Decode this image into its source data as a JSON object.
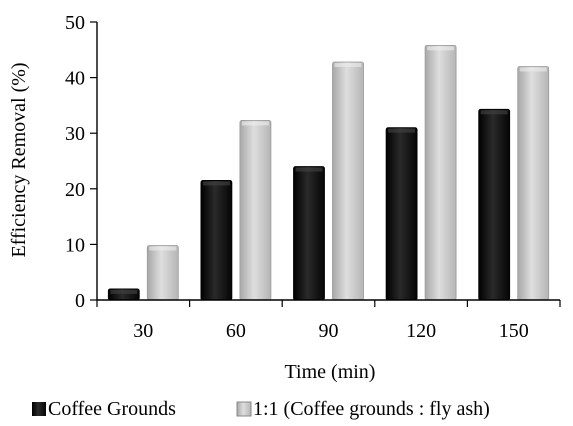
{
  "chart_data": {
    "type": "bar",
    "title": "",
    "xlabel": "Time (min)",
    "ylabel": "Efficiency Removal (%)",
    "categories": [
      "30",
      "60",
      "90",
      "120",
      "150"
    ],
    "ylim": [
      0,
      50
    ],
    "yticks": [
      "0",
      "10",
      "20",
      "30",
      "40",
      "50"
    ],
    "grid": false,
    "legend_position": "bottom",
    "series": [
      {
        "name": "Coffee Grounds",
        "values": [
          2,
          21.5,
          24,
          31,
          34.3
        ],
        "color": "#111111"
      },
      {
        "name": "1:1 (Coffee grounds : fly ash)",
        "values": [
          9.8,
          32.3,
          42.8,
          45.8,
          42
        ],
        "color": "#c4c4c4"
      }
    ]
  }
}
